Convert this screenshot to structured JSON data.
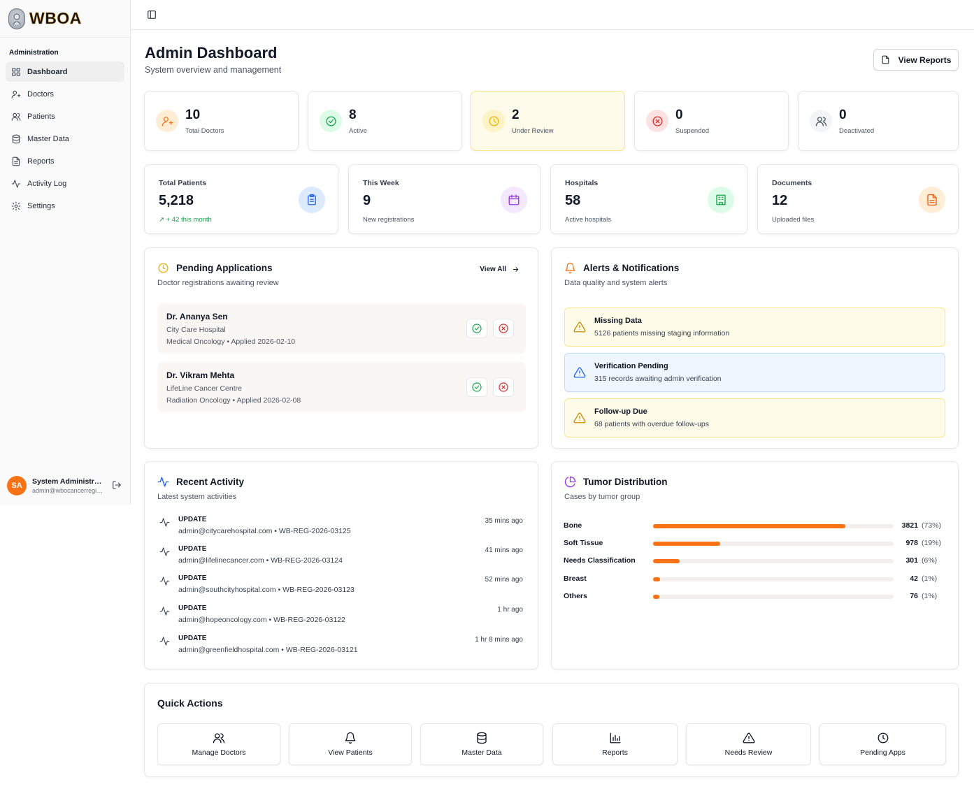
{
  "brand": {
    "name": "WBOA"
  },
  "sidebar": {
    "section_label": "Administration",
    "items": [
      {
        "label": "Dashboard",
        "icon": "dashboard-icon"
      },
      {
        "label": "Doctors",
        "icon": "doctor-icon"
      },
      {
        "label": "Patients",
        "icon": "users-icon"
      },
      {
        "label": "Master Data",
        "icon": "database-icon"
      },
      {
        "label": "Reports",
        "icon": "file-icon"
      },
      {
        "label": "Activity Log",
        "icon": "activity-icon"
      },
      {
        "label": "Settings",
        "icon": "gear-icon"
      }
    ],
    "user": {
      "initials": "SA",
      "name": "System Administrator",
      "email": "admin@wbocancerregistry.org"
    }
  },
  "header": {
    "title": "Admin Dashboard",
    "subtitle": "System overview and management",
    "view_reports_label": "View Reports"
  },
  "doctor_stats": [
    {
      "value": "10",
      "label": "Total Doctors",
      "color": "#f97316"
    },
    {
      "value": "8",
      "label": "Active",
      "color": "#16a34a"
    },
    {
      "value": "2",
      "label": "Under Review",
      "color": "#eab308"
    },
    {
      "value": "0",
      "label": "Suspended",
      "color": "#dc2626"
    },
    {
      "value": "0",
      "label": "Deactivated",
      "color": "#4b5563"
    }
  ],
  "overview_stats": [
    {
      "label": "Total Patients",
      "value": "5,218",
      "sub": "+ 42 this month",
      "color": "#2563eb"
    },
    {
      "label": "This Week",
      "value": "9",
      "sub": "New registrations",
      "color": "#9333ea"
    },
    {
      "label": "Hospitals",
      "value": "58",
      "sub": "Active hospitals",
      "color": "#16a34a"
    },
    {
      "label": "Documents",
      "value": "12",
      "sub": "Uploaded files",
      "color": "#ea580c"
    }
  ],
  "pending": {
    "title": "Pending Applications",
    "subtitle": "Doctor registrations awaiting review",
    "view_all_label": "View All",
    "items": [
      {
        "name": "Dr. Ananya Sen",
        "hospital": "City Care Hospital",
        "meta": "Medical Oncology • Applied 2026-02-10"
      },
      {
        "name": "Dr. Vikram Mehta",
        "hospital": "LifeLine Cancer Centre",
        "meta": "Radiation Oncology • Applied 2026-02-08"
      }
    ]
  },
  "alerts": {
    "title": "Alerts & Notifications",
    "subtitle": "Data quality and system alerts",
    "items": [
      {
        "title": "Missing Data",
        "desc": "5126 patients missing staging information",
        "tone": "yellow"
      },
      {
        "title": "Verification Pending",
        "desc": "315 records awaiting admin verification",
        "tone": "blue"
      },
      {
        "title": "Follow-up Due",
        "desc": "68 patients with overdue follow-ups",
        "tone": "yellow"
      }
    ]
  },
  "activity": {
    "title": "Recent Activity",
    "subtitle": "Latest system activities",
    "items": [
      {
        "type": "UPDATE",
        "desc": "admin@citycarehospital.com • WB-REG-2026-03125",
        "time": "35 mins ago"
      },
      {
        "type": "UPDATE",
        "desc": "admin@lifelinecancer.com • WB-REG-2026-03124",
        "time": "41 mins ago"
      },
      {
        "type": "UPDATE",
        "desc": "admin@southcityhospital.com • WB-REG-2026-03123",
        "time": "52 mins ago"
      },
      {
        "type": "UPDATE",
        "desc": "admin@hopeoncology.com • WB-REG-2026-03122",
        "time": "1 hr ago"
      },
      {
        "type": "UPDATE",
        "desc": "admin@greenfieldhospital.com • WB-REG-2026-03121",
        "time": "1 hr 8 mins ago"
      }
    ]
  },
  "tumor": {
    "title": "Tumor Distribution",
    "subtitle": "Cases by tumor group",
    "items": [
      {
        "name": "Bone",
        "count": "3821",
        "pct": "(73%)",
        "fraction": 0.8
      },
      {
        "name": "Soft Tissue",
        "count": "978",
        "pct": "(19%)",
        "fraction": 0.28
      },
      {
        "name": "Needs Classification",
        "count": "301",
        "pct": "(6%)",
        "fraction": 0.11
      },
      {
        "name": "Breast",
        "count": "42",
        "pct": "(1%)",
        "fraction": 0.03
      },
      {
        "name": "Others",
        "count": "76",
        "pct": "(1%)",
        "fraction": 0.025
      }
    ]
  },
  "quick_actions": {
    "title": "Quick Actions",
    "items": [
      {
        "label": "Manage Doctors",
        "icon": "users-icon"
      },
      {
        "label": "View Patients",
        "icon": "bell-icon"
      },
      {
        "label": "Master Data",
        "icon": "database-icon"
      },
      {
        "label": "Reports",
        "icon": "bar-chart-icon"
      },
      {
        "label": "Needs Review",
        "icon": "alert-triangle-icon"
      },
      {
        "label": "Pending Apps",
        "icon": "clock-icon"
      }
    ]
  }
}
